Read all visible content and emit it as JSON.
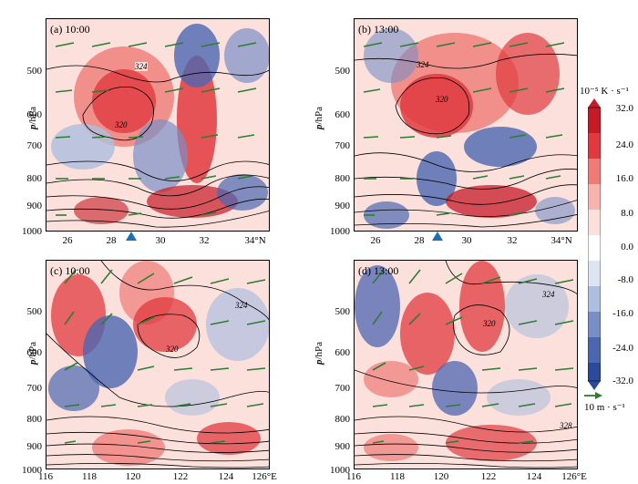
{
  "panels": [
    {
      "label": "(a) 10:00",
      "y_axis_title_var": "p",
      "y_axis_title_unit": "/hPa",
      "x_ticks": [
        "26",
        "28",
        "30",
        "32",
        "34°N"
      ]
    },
    {
      "label": "(b) 13:00",
      "y_axis_title_var": "p",
      "y_axis_title_unit": "/hPa",
      "x_ticks": [
        "26",
        "28",
        "30",
        "32",
        "34°N"
      ]
    },
    {
      "label": "(c) 10:00",
      "y_axis_title_var": "p",
      "y_axis_title_unit": "/hPa",
      "x_ticks": [
        "116",
        "118",
        "120",
        "122",
        "124",
        "126°E"
      ]
    },
    {
      "label": "(d) 13:00",
      "y_axis_title_var": "p",
      "y_axis_title_unit": "/hPa",
      "x_ticks": [
        "116",
        "118",
        "120",
        "122",
        "124",
        "126°E"
      ]
    }
  ],
  "y_ticks": [
    "500",
    "600",
    "700",
    "800",
    "900",
    "1000"
  ],
  "contour_labels": [
    "324",
    "320",
    "324",
    "320",
    "324",
    "320",
    "324",
    "320",
    "328"
  ],
  "colorbar": {
    "title": "10⁻⁵ K · s⁻¹",
    "ticks": [
      "32.0",
      "24.0",
      "16.0",
      "8.0",
      "0.0",
      "-8.0",
      "-16.0",
      "-24.0",
      "-32.0"
    ],
    "colors": [
      "#c61a27",
      "#e0393e",
      "#ef7a76",
      "#f7b3ad",
      "#fbe0dc",
      "#ffffff",
      "#dde4f2",
      "#aebede",
      "#7a8ec6",
      "#4c66b0",
      "#2c4a9c"
    ]
  },
  "reference_vector": {
    "label": "10 m · s⁻¹",
    "color": "#2e7d32"
  },
  "markers": {
    "color": "#1f6fb4"
  }
}
